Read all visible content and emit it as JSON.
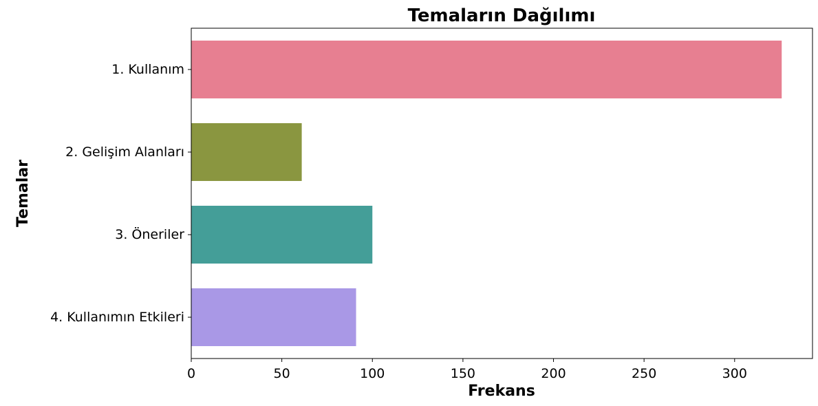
{
  "chart_data": {
    "type": "bar",
    "orientation": "horizontal",
    "title": "Temaların Dağılımı",
    "xlabel": "Frekans",
    "ylabel": "Temalar",
    "categories": [
      "1. Kullanım",
      "2. Gelişim Alanları",
      "3. Öneriler",
      "4. Kullanımın Etkileri"
    ],
    "values": [
      326,
      61,
      100,
      91
    ],
    "colors": [
      "#e77f91",
      "#8a9640",
      "#449e98",
      "#a998e6"
    ],
    "xlim": [
      0,
      343
    ],
    "xticks": [
      0,
      50,
      100,
      150,
      200,
      250,
      300
    ],
    "grid": false,
    "legend": "none"
  }
}
